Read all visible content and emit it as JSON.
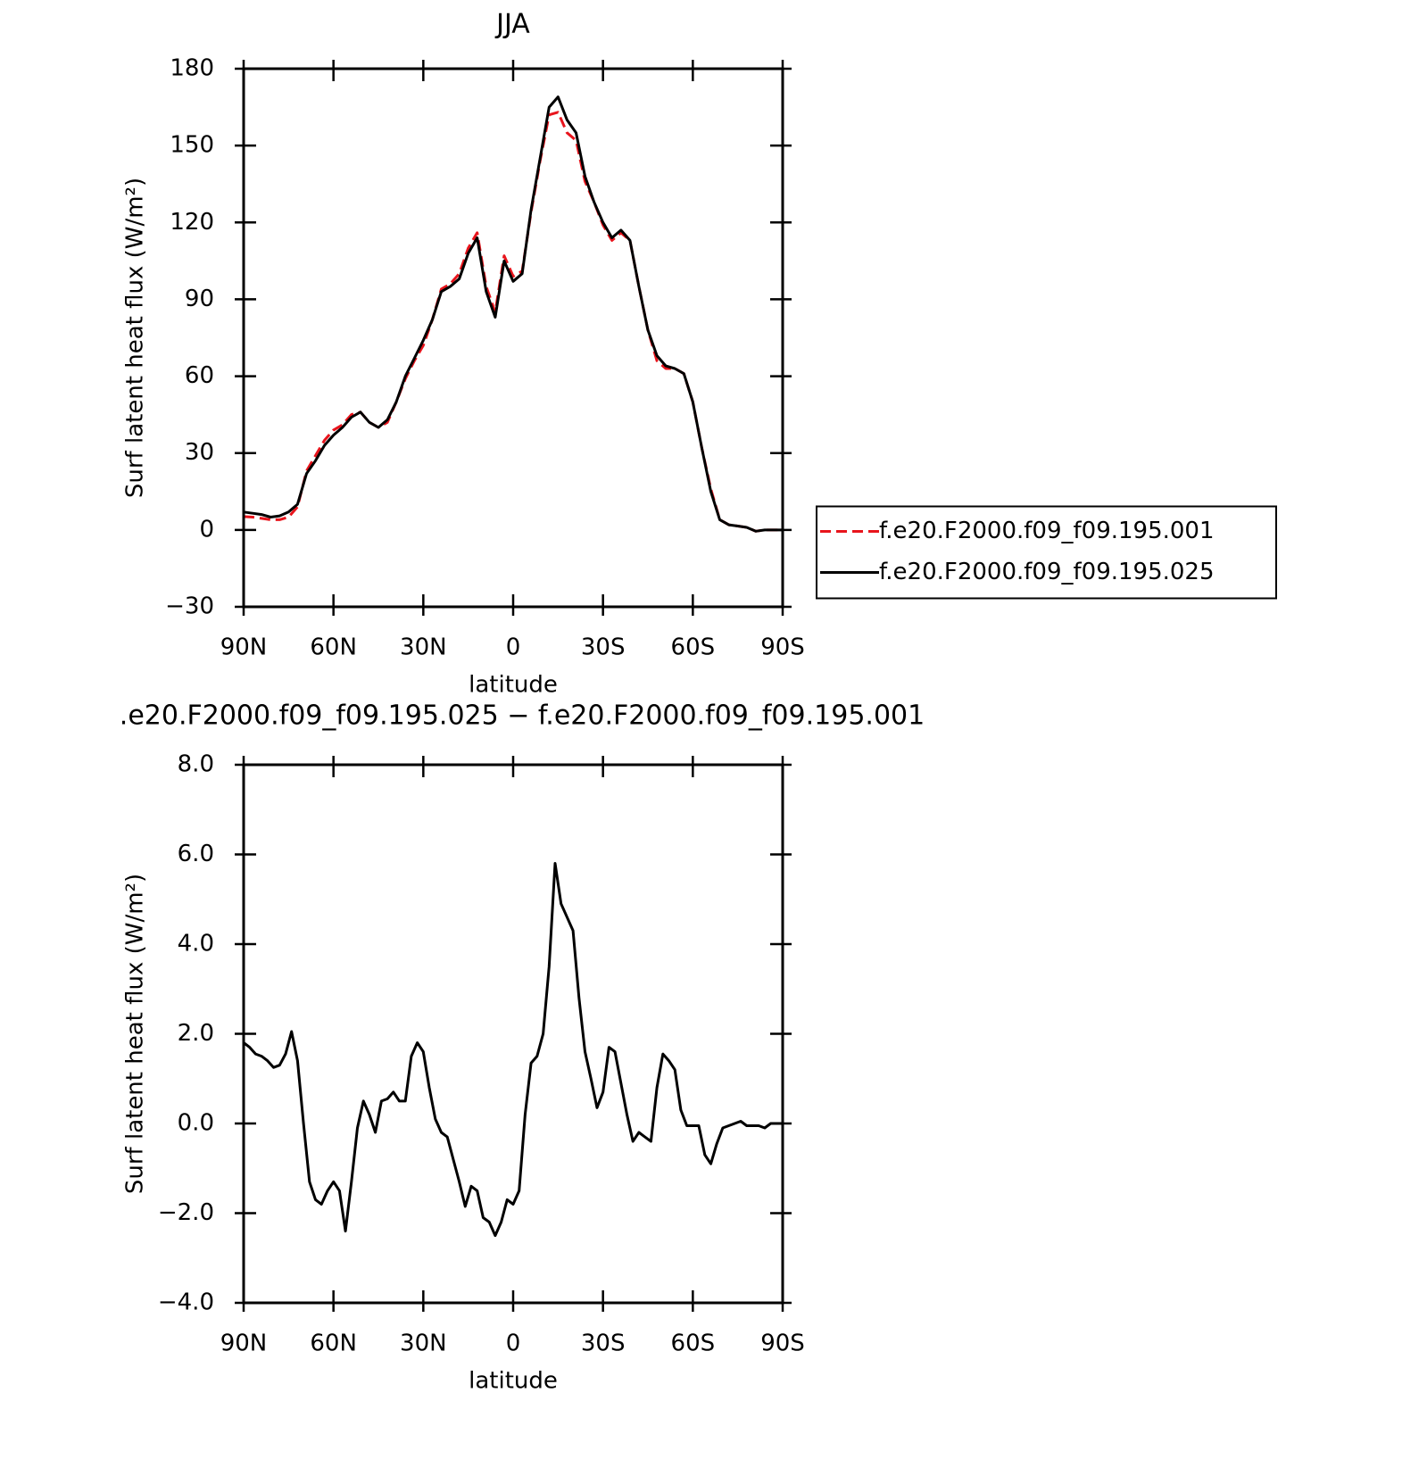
{
  "chart_data": [
    {
      "type": "line",
      "title": "JJA",
      "xlabel": "latitude",
      "ylabel": "Surf latent heat flux (W/m²)",
      "x": [
        90,
        87,
        84,
        81,
        78,
        75,
        72,
        69,
        66,
        63,
        60,
        57,
        54,
        51,
        48,
        45,
        42,
        39,
        36,
        33,
        30,
        27,
        24,
        21,
        18,
        15,
        12,
        9,
        6,
        3,
        0,
        -3,
        -6,
        -9,
        -12,
        -15,
        -18,
        -21,
        -24,
        -27,
        -30,
        -33,
        -36,
        -39,
        -42,
        -45,
        -48,
        -51,
        -54,
        -57,
        -60,
        -63,
        -66,
        -69,
        -72,
        -75,
        -78,
        -81,
        -84,
        -87,
        -90
      ],
      "xlim": [
        90,
        -90
      ],
      "xticks": [
        {
          "value": 90,
          "label": "90N"
        },
        {
          "value": 60,
          "label": "60N"
        },
        {
          "value": 30,
          "label": "30N"
        },
        0,
        {
          "value": -30,
          "label": "30S"
        },
        {
          "value": -60,
          "label": "60S"
        },
        {
          "value": -90,
          "label": "90S"
        }
      ],
      "ylim": [
        -30,
        180
      ],
      "yticks": [
        {
          "value": -30,
          "label": "−30"
        },
        0,
        30,
        60,
        90,
        120,
        150,
        180
      ],
      "legend": "right",
      "series": [
        {
          "name": "f.e20.F2000.f09_f09.195.001",
          "color": "#e8141c",
          "dash": "dashed",
          "values": [
            5.2,
            5,
            4.5,
            4,
            4,
            5,
            9,
            23,
            29,
            35,
            39,
            41,
            45,
            46,
            42,
            40,
            42,
            50,
            59,
            66,
            72,
            82,
            94,
            96,
            100,
            110,
            116,
            95,
            85,
            107,
            99,
            101,
            124,
            144,
            162,
            163,
            155,
            152,
            136,
            128,
            119,
            113,
            116,
            113,
            95,
            78,
            66,
            63,
            63,
            61,
            50,
            32,
            16,
            4,
            2,
            1.5,
            1,
            -0.5,
            0,
            0,
            0
          ]
        },
        {
          "name": "f.e20.F2000.f09_f09.195.025",
          "color": "#000000",
          "dash": "solid",
          "values": [
            7,
            6.5,
            6,
            5,
            5.5,
            7,
            10,
            22,
            27,
            33,
            37,
            40,
            44,
            46,
            42,
            40,
            43,
            50,
            60,
            67,
            74,
            82,
            93,
            95,
            98,
            108,
            114,
            93,
            83,
            105,
            97,
            100,
            125,
            145,
            165,
            169,
            160,
            155,
            138,
            128,
            120,
            114,
            117,
            113,
            95,
            78,
            68,
            64,
            63,
            61,
            50,
            32,
            15,
            4,
            2,
            1.5,
            1,
            -0.5,
            0,
            0,
            0
          ]
        }
      ]
    },
    {
      "type": "line",
      "title": ".e20.F2000.f09_f09.195.025 − f.e20.F2000.f09_f09.195.001",
      "xlabel": "latitude",
      "ylabel": "Surf latent heat flux (W/m²)",
      "x": [
        90,
        88,
        86,
        84,
        82,
        80,
        78,
        76,
        74,
        72,
        70,
        68,
        66,
        64,
        62,
        60,
        58,
        56,
        54,
        52,
        50,
        48,
        46,
        44,
        42,
        40,
        38,
        36,
        34,
        32,
        30,
        28,
        26,
        24,
        22,
        20,
        18,
        16,
        14,
        12,
        10,
        8,
        6,
        4,
        2,
        0,
        -2,
        -4,
        -6,
        -8,
        -10,
        -12,
        -14,
        -16,
        -18,
        -20,
        -22,
        -24,
        -26,
        -28,
        -30,
        -32,
        -34,
        -36,
        -38,
        -40,
        -42,
        -44,
        -46,
        -48,
        -50,
        -52,
        -54,
        -56,
        -58,
        -60,
        -62,
        -64,
        -66,
        -68,
        -70,
        -72,
        -74,
        -76,
        -78,
        -80,
        -82,
        -84,
        -86,
        -88,
        -90
      ],
      "xlim": [
        90,
        -90
      ],
      "xticks": [
        {
          "value": 90,
          "label": "90N"
        },
        {
          "value": 60,
          "label": "60N"
        },
        {
          "value": 30,
          "label": "30N"
        },
        0,
        {
          "value": -30,
          "label": "30S"
        },
        {
          "value": -60,
          "label": "60S"
        },
        {
          "value": -90,
          "label": "90S"
        }
      ],
      "ylim": [
        -4,
        8
      ],
      "yticks": [
        {
          "value": -4,
          "label": "−4.0"
        },
        {
          "value": -2,
          "label": "−2.0"
        },
        {
          "value": 0,
          "label": "0.0"
        },
        {
          "value": 2,
          "label": "2.0"
        },
        {
          "value": 4,
          "label": "4.0"
        },
        {
          "value": 6,
          "label": "6.0"
        },
        {
          "value": 8,
          "label": "8.0"
        }
      ],
      "color": "#000000",
      "values": [
        1.8,
        1.7,
        1.55,
        1.5,
        1.4,
        1.25,
        1.3,
        1.55,
        2.05,
        1.4,
        0,
        -1.3,
        -1.7,
        -1.8,
        -1.5,
        -1.3,
        -1.5,
        -2.4,
        -1.3,
        -0.1,
        0.5,
        0.2,
        -0.2,
        0.5,
        0.55,
        0.7,
        0.5,
        0.5,
        1.5,
        1.8,
        1.6,
        0.8,
        0.1,
        -0.2,
        -0.3,
        -0.8,
        -1.3,
        -1.85,
        -1.4,
        -1.5,
        -2.1,
        -2.2,
        -2.5,
        -2.2,
        -1.7,
        -1.8,
        -1.5,
        0.2,
        1.35,
        1.5,
        2,
        3.5,
        5.8,
        4.9,
        4.6,
        4.3,
        2.8,
        1.6,
        1,
        0.35,
        0.7,
        1.7,
        1.6,
        0.9,
        0.2,
        -0.4,
        -0.2,
        -0.3,
        -0.4,
        0.8,
        1.55,
        1.4,
        1.2,
        0.3,
        -0.05,
        -0.05,
        -0.05,
        -0.7,
        -0.9,
        -0.45,
        -0.1,
        -0.05,
        0,
        0.05,
        -0.05,
        -0.05,
        -0.05,
        -0.1,
        0,
        0,
        0
      ]
    }
  ]
}
